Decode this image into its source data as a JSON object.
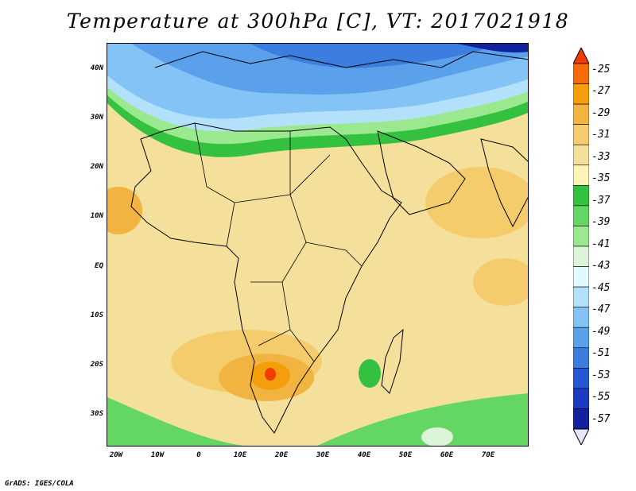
{
  "title": "Temperature at 300hPa [C], VT: 2017021918",
  "footer": "GrADS: IGES/COLA",
  "lat_labels": [
    "40N",
    "30N",
    "20N",
    "10N",
    "EQ",
    "10S",
    "20S",
    "30S"
  ],
  "lon_labels": [
    "20W",
    "10W",
    "0",
    "10E",
    "20E",
    "30E",
    "40E",
    "50E",
    "60E",
    "70E"
  ],
  "colorbar": {
    "levels": [
      "-25",
      "-27",
      "-29",
      "-31",
      "-33",
      "-35",
      "-37",
      "-39",
      "-41",
      "-43",
      "-45",
      "-47",
      "-49",
      "-51",
      "-53",
      "-55",
      "-57"
    ],
    "colors": [
      "#f03c00",
      "#f76a0a",
      "#f59e0c",
      "#f2b441",
      "#f5cc6c",
      "#f5e09b",
      "#fcf3b7",
      "#34c13f",
      "#63d663",
      "#9be98e",
      "#dcf5d8",
      "#e1faff",
      "#b3e1fb",
      "#84c3f5",
      "#5aa0eb",
      "#3c7ee0",
      "#2658d2",
      "#1b3cc0",
      "#12229e",
      "#e6e6fa"
    ]
  },
  "chart_data": {
    "type": "heatmap",
    "title": "Temperature at 300hPa [C], VT: 2017021918",
    "variable": "Temperature",
    "units": "C",
    "level": "300hPa",
    "valid_time": "2017021918",
    "lon_range": [
      -23,
      80
    ],
    "lat_range": [
      -37,
      45
    ],
    "contour_levels": [
      -25,
      -27,
      -29,
      -31,
      -33,
      -35,
      -37,
      -39,
      -41,
      -43,
      -45,
      -47,
      -49,
      -51,
      -53,
      -55,
      -57
    ]
  }
}
